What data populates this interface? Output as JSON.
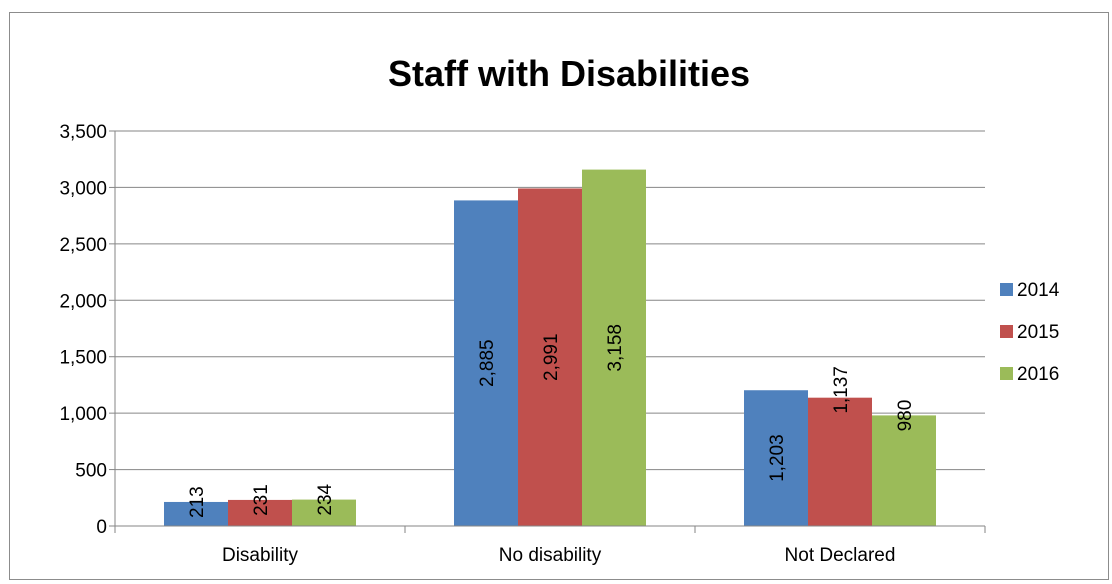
{
  "chart_data": {
    "type": "bar",
    "title": "Staff with Disabilities",
    "categories": [
      "Disability",
      "No disability",
      "Not Declared"
    ],
    "series": [
      {
        "name": "2014",
        "color": "#4f81bd",
        "values": [
          213,
          2885,
          1203
        ],
        "labels": [
          "213",
          "2,885",
          "1,203"
        ]
      },
      {
        "name": "2015",
        "color": "#c0504d",
        "values": [
          231,
          2991,
          1137
        ],
        "labels": [
          "231",
          "2,991",
          "1,137"
        ]
      },
      {
        "name": "2016",
        "color": "#9bbb59",
        "values": [
          234,
          3158,
          980
        ],
        "labels": [
          "234",
          "3,158",
          "980"
        ]
      }
    ],
    "ylim": [
      0,
      3500
    ],
    "yticks": [
      0,
      500,
      1000,
      1500,
      2000,
      2500,
      3000,
      3500
    ],
    "ytick_labels": [
      "0",
      "500",
      "1,000",
      "1,500",
      "2,000",
      "2,500",
      "3,000",
      "3,500"
    ],
    "grid": true,
    "legend_position": "right",
    "xlabel": "",
    "ylabel": ""
  }
}
